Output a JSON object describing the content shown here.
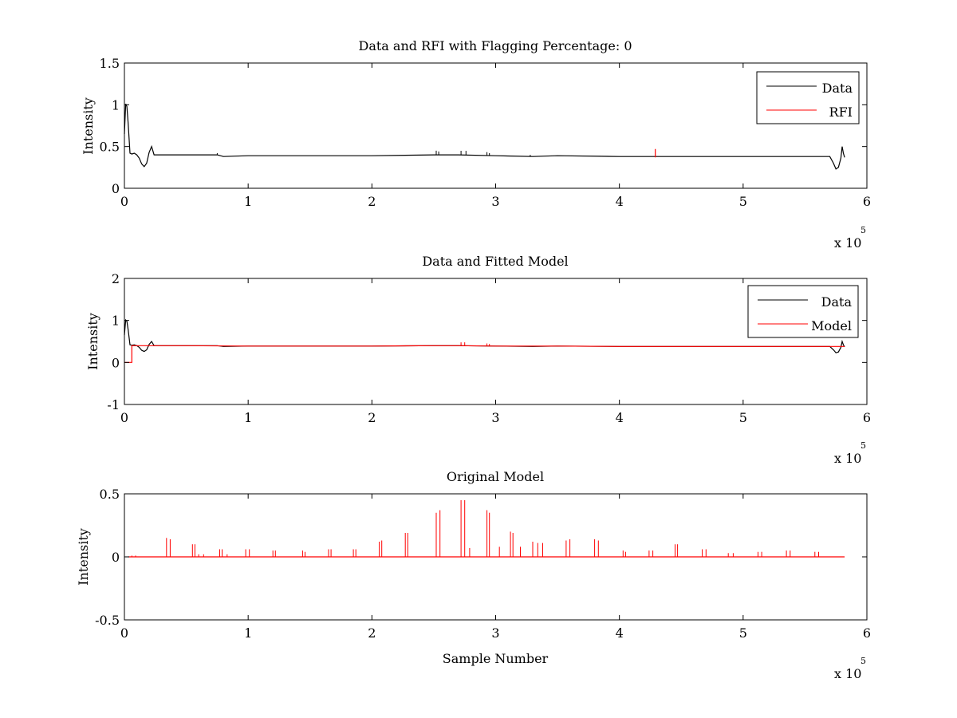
{
  "colors": {
    "data": "#000000",
    "rfi": "#ff0000",
    "axes": "#000000",
    "background": "#ffffff"
  },
  "chart_data": [
    {
      "type": "line",
      "title": "Data and RFI with Flagging Percentage: 0",
      "xlabel": "",
      "ylabel": "Intensity",
      "xlim": [
        0,
        6
      ],
      "ylim": [
        0,
        1.5
      ],
      "x_multiplier": {
        "base": "x 10",
        "exponent": "5"
      },
      "x_ticks": [
        0,
        1,
        2,
        3,
        4,
        5,
        6
      ],
      "x_tick_labels": [
        "0",
        "1",
        "2",
        "3",
        "4",
        "5",
        "6"
      ],
      "y_ticks": [
        0,
        0.5,
        1,
        1.5
      ],
      "y_tick_labels": [
        "0",
        "0.5",
        "1",
        "1.5"
      ],
      "legend": {
        "position": "top-right",
        "entries": [
          "Data",
          "RFI"
        ]
      },
      "grid": false,
      "series": [
        {
          "name": "Data",
          "color": "#000000",
          "x": [
            0.0,
            0.01,
            0.02,
            0.03,
            0.045,
            0.06,
            0.08,
            0.1,
            0.12,
            0.14,
            0.16,
            0.18,
            0.2,
            0.22,
            0.24,
            0.3,
            0.4,
            0.5,
            0.75,
            0.8,
            1.0,
            1.5,
            2.0,
            2.5,
            2.7,
            3.0,
            3.3,
            3.5,
            4.0,
            4.5,
            5.0,
            5.5,
            5.65,
            5.7,
            5.73,
            5.75,
            5.77,
            5.79,
            5.8,
            5.81,
            5.82
          ],
          "y": [
            0.65,
            1.01,
            0.98,
            0.78,
            0.42,
            0.41,
            0.42,
            0.4,
            0.36,
            0.29,
            0.26,
            0.3,
            0.43,
            0.5,
            0.4,
            0.4,
            0.4,
            0.4,
            0.4,
            0.38,
            0.39,
            0.39,
            0.39,
            0.4,
            0.4,
            0.39,
            0.38,
            0.39,
            0.38,
            0.38,
            0.38,
            0.38,
            0.38,
            0.38,
            0.3,
            0.23,
            0.25,
            0.36,
            0.5,
            0.42,
            0.37
          ]
        },
        {
          "name": "RFI",
          "color": "#ff0000",
          "x": [
            4.29,
            4.29,
            4.29
          ],
          "y": [
            0.37,
            0.47,
            0.37
          ]
        }
      ],
      "spikes": {
        "color": "#000000",
        "x": [
          2.52,
          2.54,
          2.72,
          2.76,
          2.93,
          2.95,
          0.75,
          3.28
        ],
        "height": [
          0.05,
          0.04,
          0.05,
          0.05,
          0.04,
          0.03,
          0.02,
          0.02
        ]
      }
    },
    {
      "type": "line",
      "title": "Data and Fitted Model",
      "xlabel": "",
      "ylabel": "Intensity",
      "xlim": [
        0,
        6
      ],
      "ylim": [
        -1,
        2
      ],
      "x_multiplier": {
        "base": "x 10",
        "exponent": "5"
      },
      "x_ticks": [
        0,
        1,
        2,
        3,
        4,
        5,
        6
      ],
      "x_tick_labels": [
        "0",
        "1",
        "2",
        "3",
        "4",
        "5",
        "6"
      ],
      "y_ticks": [
        -1,
        0,
        1,
        2
      ],
      "y_tick_labels": [
        "-1",
        "0",
        "1",
        "2"
      ],
      "legend": {
        "position": "top-right",
        "entries": [
          "Data",
          "Model"
        ]
      },
      "grid": false,
      "series": [
        {
          "name": "Data",
          "color": "#000000",
          "x": [
            0.0,
            0.01,
            0.02,
            0.03,
            0.045,
            0.06,
            0.08,
            0.1,
            0.12,
            0.14,
            0.16,
            0.18,
            0.2,
            0.22,
            0.24,
            0.3,
            0.4,
            0.5,
            0.75,
            0.8,
            1.0,
            1.5,
            2.0,
            2.5,
            2.7,
            3.0,
            3.3,
            3.5,
            4.0,
            4.5,
            5.0,
            5.5,
            5.65,
            5.7,
            5.73,
            5.75,
            5.77,
            5.79,
            5.8,
            5.81,
            5.82
          ],
          "y": [
            0.65,
            1.01,
            0.98,
            0.78,
            0.42,
            0.41,
            0.42,
            0.4,
            0.36,
            0.29,
            0.26,
            0.3,
            0.43,
            0.5,
            0.4,
            0.4,
            0.4,
            0.4,
            0.4,
            0.38,
            0.39,
            0.39,
            0.39,
            0.4,
            0.4,
            0.39,
            0.38,
            0.39,
            0.38,
            0.38,
            0.38,
            0.38,
            0.38,
            0.38,
            0.3,
            0.23,
            0.25,
            0.36,
            0.5,
            0.42,
            0.37
          ]
        },
        {
          "name": "Model",
          "color": "#ff0000",
          "x": [
            0.0,
            0.06,
            0.06,
            0.5,
            1.0,
            2.0,
            2.5,
            2.7,
            3.0,
            3.5,
            4.0,
            4.5,
            5.0,
            5.5,
            5.75,
            5.82
          ],
          "y": [
            0.0,
            0.0,
            0.4,
            0.4,
            0.39,
            0.39,
            0.4,
            0.4,
            0.39,
            0.39,
            0.38,
            0.38,
            0.38,
            0.38,
            0.38,
            0.38
          ]
        }
      ],
      "spikes": {
        "color": "#ff0000",
        "x": [
          2.72,
          2.75,
          2.93,
          2.95
        ],
        "height": [
          0.08,
          0.08,
          0.06,
          0.05
        ]
      }
    },
    {
      "type": "line",
      "title": "Original Model",
      "xlabel": "Sample Number",
      "ylabel": "Intensity",
      "xlim": [
        0,
        6
      ],
      "ylim": [
        -0.5,
        0.5
      ],
      "x_multiplier": {
        "base": "x 10",
        "exponent": "5"
      },
      "x_ticks": [
        0,
        1,
        2,
        3,
        4,
        5,
        6
      ],
      "x_tick_labels": [
        "0",
        "1",
        "2",
        "3",
        "4",
        "5",
        "6"
      ],
      "y_ticks": [
        -0.5,
        0,
        0.5
      ],
      "y_tick_labels": [
        "-0.5",
        "0",
        "0.5"
      ],
      "grid": false,
      "series": [
        {
          "color": "#ff0000",
          "x": [
            0.03,
            5.82
          ],
          "y": [
            0.0,
            0.0
          ]
        }
      ],
      "spikes": {
        "color": "#ff0000",
        "x": [
          0.06,
          0.09,
          0.34,
          0.37,
          0.55,
          0.57,
          0.6,
          0.64,
          0.77,
          0.79,
          0.83,
          0.98,
          1.01,
          1.2,
          1.22,
          1.44,
          1.46,
          1.65,
          1.67,
          1.85,
          1.87,
          2.06,
          2.08,
          2.27,
          2.29,
          2.52,
          2.55,
          2.72,
          2.75,
          2.79,
          2.93,
          2.95,
          3.03,
          3.12,
          3.14,
          3.2,
          3.3,
          3.34,
          3.38,
          3.57,
          3.6,
          3.8,
          3.83,
          4.03,
          4.05,
          4.24,
          4.27,
          4.45,
          4.47,
          4.67,
          4.7,
          4.88,
          4.92,
          5.12,
          5.15,
          5.35,
          5.38,
          5.58,
          5.61
        ],
        "height": [
          0.01,
          0.01,
          0.15,
          0.14,
          0.1,
          0.1,
          0.02,
          0.02,
          0.06,
          0.06,
          0.02,
          0.06,
          0.06,
          0.05,
          0.05,
          0.05,
          0.04,
          0.06,
          0.06,
          0.06,
          0.06,
          0.12,
          0.13,
          0.19,
          0.19,
          0.35,
          0.37,
          0.45,
          0.45,
          0.07,
          0.37,
          0.35,
          0.08,
          0.2,
          0.19,
          0.08,
          0.12,
          0.11,
          0.11,
          0.13,
          0.14,
          0.14,
          0.13,
          0.05,
          0.04,
          0.05,
          0.05,
          0.1,
          0.1,
          0.06,
          0.06,
          0.03,
          0.03,
          0.04,
          0.04,
          0.05,
          0.05,
          0.04,
          0.04
        ]
      }
    }
  ]
}
